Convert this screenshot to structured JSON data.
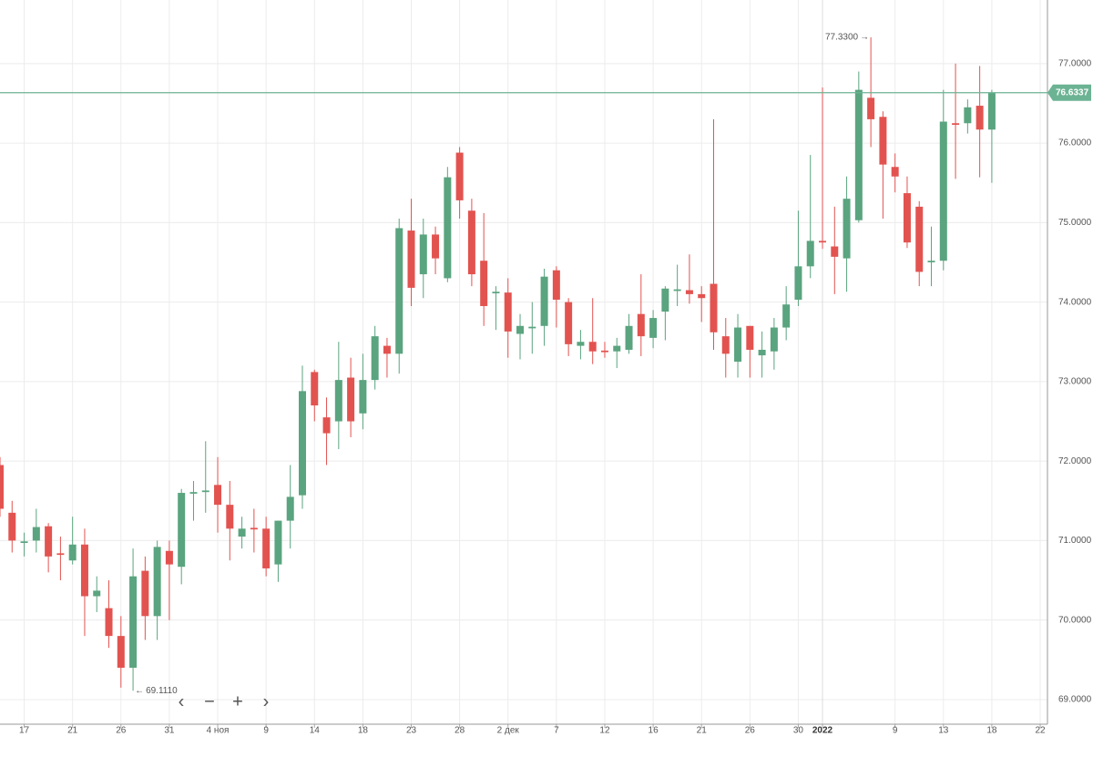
{
  "chart_data": {
    "type": "candlestick",
    "open": [
      71.95,
      71.35,
      70.97,
      71.0,
      71.18,
      70.84,
      70.75,
      70.95,
      70.3,
      70.15,
      69.8,
      69.4,
      70.62,
      70.05,
      70.87,
      70.67,
      71.59,
      71.61,
      71.7,
      71.45,
      71.05,
      71.16,
      71.15,
      70.7,
      71.25,
      71.57,
      73.12,
      72.55,
      72.5,
      73.05,
      72.6,
      73.02,
      73.45,
      73.35,
      74.9,
      74.35,
      74.85,
      74.3,
      75.88,
      75.15,
      74.52,
      74.11,
      74.12,
      73.6,
      73.67,
      73.7,
      74.4,
      74.0,
      73.45,
      73.5,
      73.39,
      73.38,
      73.4,
      73.85,
      73.55,
      73.88,
      74.14,
      74.15,
      74.1,
      74.23,
      73.57,
      73.25,
      73.7,
      73.33,
      73.38,
      73.68,
      74.03,
      74.45,
      74.77,
      74.7,
      74.55,
      75.03,
      76.57,
      76.33,
      75.7,
      75.37,
      75.2,
      74.5,
      74.52,
      76.25,
      76.25,
      76.47,
      76.17
    ],
    "high": [
      72.05,
      71.5,
      71.1,
      71.4,
      71.22,
      71.05,
      71.3,
      71.15,
      70.55,
      70.5,
      70.05,
      70.9,
      70.8,
      71.0,
      71.0,
      71.65,
      71.75,
      72.25,
      72.05,
      71.75,
      71.3,
      71.4,
      71.3,
      71.25,
      71.95,
      73.2,
      73.15,
      72.8,
      73.5,
      73.3,
      73.35,
      73.7,
      73.55,
      75.05,
      75.3,
      75.05,
      74.95,
      75.7,
      75.95,
      75.3,
      75.12,
      74.2,
      74.3,
      73.85,
      74.0,
      74.42,
      74.45,
      74.05,
      73.65,
      74.05,
      73.5,
      73.55,
      73.85,
      74.35,
      73.9,
      74.2,
      74.47,
      74.6,
      74.2,
      76.3,
      73.8,
      73.85,
      73.7,
      73.63,
      73.8,
      74.2,
      75.15,
      75.85,
      76.7,
      75.2,
      75.58,
      76.9,
      77.33,
      76.4,
      75.87,
      75.58,
      75.27,
      74.95,
      76.67,
      77.0,
      76.55,
      76.97,
      76.67
    ],
    "low": [
      71.3,
      70.85,
      70.8,
      70.85,
      70.6,
      70.5,
      70.7,
      69.8,
      70.1,
      69.65,
      69.15,
      69.111,
      69.75,
      69.75,
      70.0,
      70.45,
      71.25,
      71.35,
      71.1,
      70.75,
      70.9,
      70.85,
      70.55,
      70.48,
      70.9,
      71.4,
      72.5,
      71.95,
      72.15,
      72.3,
      72.4,
      72.9,
      73.05,
      73.1,
      73.95,
      74.05,
      74.35,
      74.25,
      75.05,
      74.2,
      73.7,
      73.65,
      73.3,
      73.28,
      73.35,
      73.45,
      73.68,
      73.32,
      73.28,
      73.22,
      73.3,
      73.17,
      73.35,
      73.32,
      73.42,
      73.52,
      73.95,
      73.98,
      73.75,
      73.4,
      73.05,
      73.05,
      73.05,
      73.05,
      73.15,
      73.52,
      73.95,
      74.3,
      74.67,
      74.1,
      74.13,
      75.0,
      75.95,
      75.05,
      75.38,
      74.68,
      74.2,
      74.2,
      74.4,
      75.55,
      76.12,
      75.57,
      75.5
    ],
    "close": [
      71.4,
      71.0,
      70.99,
      71.17,
      70.8,
      70.82,
      70.95,
      70.3,
      70.37,
      69.8,
      69.4,
      70.55,
      70.05,
      70.92,
      70.7,
      71.6,
      71.61,
      71.63,
      71.45,
      71.15,
      71.15,
      71.14,
      70.65,
      71.25,
      71.55,
      72.88,
      72.7,
      72.35,
      73.02,
      72.5,
      73.02,
      73.57,
      73.35,
      74.93,
      74.18,
      74.85,
      74.55,
      75.57,
      75.28,
      74.35,
      73.95,
      74.13,
      73.63,
      73.7,
      73.69,
      74.32,
      74.03,
      73.47,
      73.5,
      73.38,
      73.37,
      73.45,
      73.7,
      73.57,
      73.8,
      74.17,
      74.16,
      74.1,
      74.05,
      73.62,
      73.35,
      73.68,
      73.4,
      73.4,
      73.68,
      73.97,
      74.45,
      74.77,
      74.75,
      74.57,
      75.3,
      76.67,
      76.3,
      75.73,
      75.58,
      74.75,
      74.38,
      74.52,
      76.27,
      76.23,
      76.45,
      76.17,
      76.63
    ],
    "colors": {
      "up": "#5aa47f",
      "down": "#e25350"
    },
    "last_price": 76.6337,
    "last_price_color": "#6cb394",
    "annotations": [
      {
        "value": 77.33,
        "label": "77.3300"
      },
      {
        "value": 69.111,
        "label": "69.1110"
      }
    ],
    "xlim": [
      0,
      86.6
    ],
    "xticks": [
      {
        "value": 2,
        "label": "17"
      },
      {
        "value": 6,
        "label": "21"
      },
      {
        "value": 10,
        "label": "26"
      },
      {
        "value": 14,
        "label": "31"
      },
      {
        "value": 18,
        "label": "4 ноя"
      },
      {
        "value": 22,
        "label": "9"
      },
      {
        "value": 26,
        "label": "14"
      },
      {
        "value": 30,
        "label": "18"
      },
      {
        "value": 34,
        "label": "23"
      },
      {
        "value": 38,
        "label": "28"
      },
      {
        "value": 42,
        "label": "2 дек"
      },
      {
        "value": 46,
        "label": "7"
      },
      {
        "value": 50,
        "label": "12"
      },
      {
        "value": 54,
        "label": "16"
      },
      {
        "value": 58,
        "label": "21"
      },
      {
        "value": 62,
        "label": "26"
      },
      {
        "value": 66,
        "label": "30"
      },
      {
        "value": 68,
        "label": "2022"
      },
      {
        "value": 74,
        "label": "9"
      },
      {
        "value": 78,
        "label": "13"
      },
      {
        "value": 82,
        "label": "18"
      },
      {
        "value": 86,
        "label": "22"
      }
    ],
    "ylim": [
      68.69,
      77.8
    ],
    "yticks": [
      {
        "value": 69,
        "label": "69.0000"
      },
      {
        "value": 70,
        "label": "70.0000"
      },
      {
        "value": 71,
        "label": "71.0000"
      },
      {
        "value": 72,
        "label": "72.0000"
      },
      {
        "value": 73,
        "label": "73.0000"
      },
      {
        "value": 74,
        "label": "74.0000"
      },
      {
        "value": 75,
        "label": "75.0000"
      },
      {
        "value": 76,
        "label": "76.0000"
      },
      {
        "value": 77,
        "label": "77.0000"
      }
    ],
    "grid": true
  }
}
